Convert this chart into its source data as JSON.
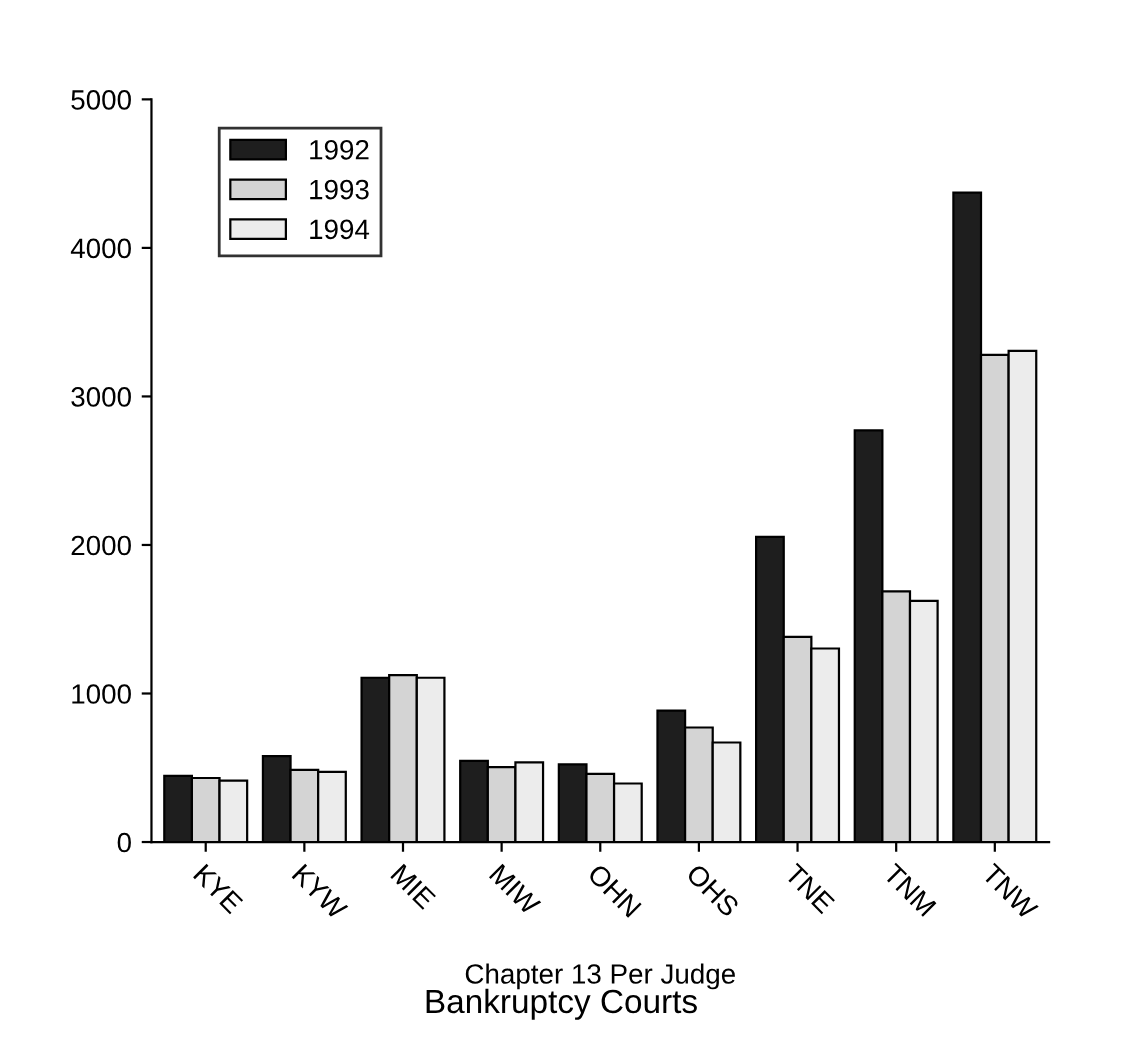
{
  "chart_data": {
    "type": "bar",
    "title": "Bankruptcy Courts",
    "xlabel": "Chapter 13 Per Judge",
    "categories": [
      "KYE",
      "KYW",
      "MIE",
      "MIW",
      "OHN",
      "OHS",
      "TNE",
      "TNM",
      "TNW"
    ],
    "series": [
      {
        "name": "1992",
        "color": "#1e1e1e",
        "values": [
          445,
          578,
          1106,
          546,
          523,
          885,
          2055,
          2771,
          4372
        ]
      },
      {
        "name": "1993",
        "color": "#d4d4d4",
        "values": [
          431,
          486,
          1124,
          505,
          459,
          771,
          1381,
          1688,
          3280
        ]
      },
      {
        "name": "1994",
        "color": "#ececec",
        "values": [
          413,
          472,
          1106,
          537,
          394,
          670,
          1303,
          1624,
          3307
        ]
      }
    ],
    "ylim": [
      0,
      5000
    ],
    "yticks": [
      0,
      1000,
      2000,
      3000,
      4000,
      5000
    ],
    "grid": false,
    "legend": "top left"
  }
}
